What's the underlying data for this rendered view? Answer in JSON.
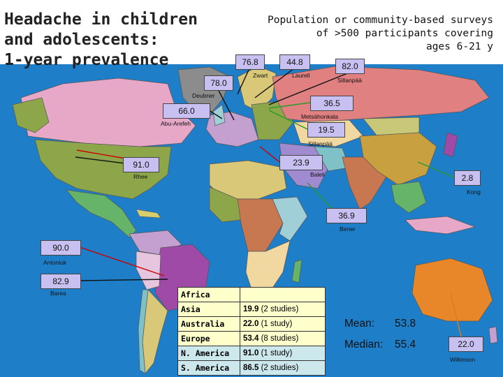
{
  "chart_data": {
    "type": "map",
    "title": "Headache in children\nand adolescents:\n1-year prevalence",
    "subtitle": "Population or community-based surveys\nof >500 participants covering\nages 6-21 y",
    "studies": [
      {
        "value": 76.8,
        "value_label": "76.8",
        "author": "Zwart"
      },
      {
        "value": 44.8,
        "value_label": "44.8",
        "author": "Laurell"
      },
      {
        "value": 82.0,
        "value_label": "82.0",
        "author": "Sillanpää"
      },
      {
        "value": 78.0,
        "value_label": "78.0",
        "author": "Deubner"
      },
      {
        "value": 66.0,
        "value_label": "66.0",
        "author": "Abu-Arefeh"
      },
      {
        "value": 36.5,
        "value_label": "36.5",
        "author": "Metsähonkala"
      },
      {
        "value": 19.5,
        "value_label": "19.5",
        "author": "Sillanpää"
      },
      {
        "value": 91.0,
        "value_label": "91.0",
        "author": "Rhee"
      },
      {
        "value": 23.9,
        "value_label": "23.9",
        "author": "Baleli"
      },
      {
        "value": 2.8,
        "value_label": "2.8",
        "author": "Kong"
      },
      {
        "value": 36.9,
        "value_label": "36.9",
        "author": "Bener"
      },
      {
        "value": 90.0,
        "value_label": "90.0",
        "author": "Antoniuk"
      },
      {
        "value": 82.9,
        "value_label": "82.9",
        "author": "Barea"
      },
      {
        "value": 22.0,
        "value_label": "22.0",
        "author": "Wilkinson"
      }
    ],
    "summary_table": [
      {
        "region": "Africa",
        "value": "",
        "note": ""
      },
      {
        "region": "Asia",
        "value": "19.9",
        "note": " (2 studies)"
      },
      {
        "region": "Australia",
        "value": "22.0",
        "note": " (1 study)"
      },
      {
        "region": "Europe",
        "value": "53.4",
        "note": " (8 studies)"
      },
      {
        "region": "N. America",
        "value": "91.0",
        "note": " (1 study)"
      },
      {
        "region": "S. America",
        "value": "86.5",
        "note": " (2 studies)"
      }
    ],
    "stats": {
      "mean_label": "Mean:",
      "mean_value": "53.8",
      "median_label": "Median:",
      "median_value": "55.4"
    },
    "colors": {
      "ocean": "#1e7ec8",
      "callout_fill": "#c8c0f0",
      "leader_red": "#cc0000",
      "leader_green": "#2a9a2a",
      "leader_black": "#111111",
      "leader_orange": "#e07a1a",
      "table_fill": "#ffffcc",
      "table_highlight": "#cce8ec"
    }
  }
}
